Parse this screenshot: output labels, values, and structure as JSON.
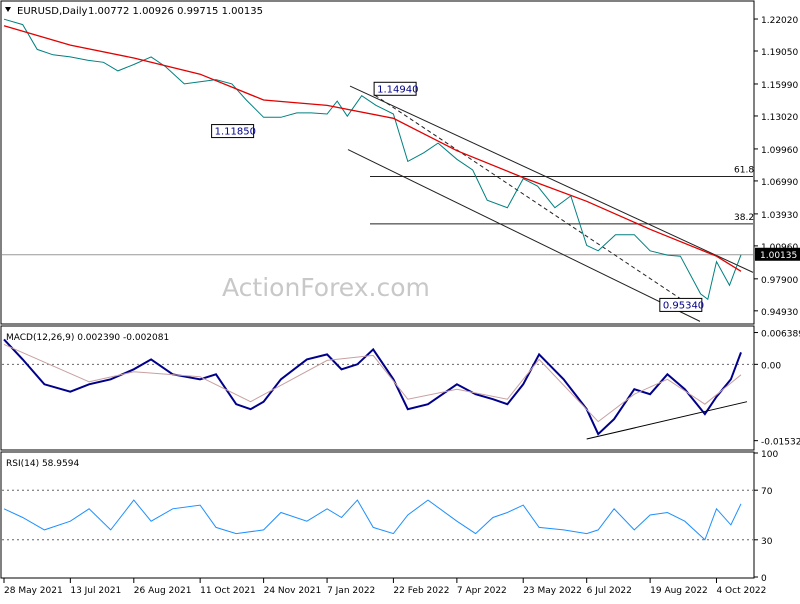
{
  "header": {
    "symbol": "EURUSD,Daily",
    "ohlc": "1.00772 1.00926 0.99715 1.00135"
  },
  "watermark": "ActionForex.com",
  "colors": {
    "price": "#008080",
    "ma": "#e00000",
    "macd": "#00008b",
    "signal": "#c8a0a0",
    "rsi": "#1e90ff",
    "fibo": "#222222",
    "channel": "#222222",
    "grid_dash": "#666666",
    "current_label_bg": "#000000"
  },
  "chart_data": [
    {
      "type": "line",
      "panel": "price",
      "y_range": [
        0.938,
        1.236
      ],
      "y_ticks": [
        "1.22020",
        "1.19050",
        "1.15990",
        "1.13020",
        "1.09960",
        "1.06990",
        "1.03930",
        "1.00960",
        "0.97900",
        "0.94930"
      ],
      "current_price": "1.00135",
      "x_ticks": [
        "28 May 2021",
        "13 Jul 2021",
        "26 Aug 2021",
        "11 Oct 2021",
        "24 Nov 2021",
        "7 Jan 2022",
        "22 Feb 2022",
        "7 Apr 2022",
        "23 May 2022",
        "6 Jul 2022",
        "19 Aug 2022",
        "4 Oct 2022"
      ],
      "series": [
        {
          "role": "price",
          "x": [
            "28 May 2021",
            "10 Jun 2021",
            "20 Jun 2021",
            "1 Jul 2021",
            "13 Jul 2021",
            "25 Jul 2021",
            "5 Aug 2021",
            "15 Aug 2021",
            "26 Aug 2021",
            "7 Sep 2021",
            "17 Sep 2021",
            "30 Sep 2021",
            "11 Oct 2021",
            "22 Oct 2021",
            "2 Nov 2021",
            "12 Nov 2021",
            "24 Nov 2021",
            "6 Dec 2021",
            "17 Dec 2021",
            "27 Dec 2021",
            "7 Jan 2022",
            "14 Jan 2022",
            "21 Jan 2022",
            "31 Jan 2022",
            "10 Feb 2022",
            "22 Feb 2022",
            "4 Mar 2022",
            "15 Mar 2022",
            "25 Mar 2022",
            "7 Apr 2022",
            "18 Apr 2022",
            "28 Apr 2022",
            "12 May 2022",
            "23 May 2022",
            "2 Jun 2022",
            "14 Jun 2022",
            "25 Jun 2022",
            "6 Jul 2022",
            "14 Jul 2022",
            "26 Jul 2022",
            "8 Aug 2022",
            "19 Aug 2022",
            "31 Aug 2022",
            "9 Sep 2022",
            "23 Sep 2022",
            "28 Sep 2022",
            "4 Oct 2022",
            "13 Oct 2022",
            "21 Oct 2022"
          ],
          "y": [
            1.22,
            1.215,
            1.192,
            1.187,
            1.185,
            1.182,
            1.18,
            1.172,
            1.178,
            1.185,
            1.176,
            1.16,
            1.162,
            1.164,
            1.16,
            1.145,
            1.129,
            1.129,
            1.133,
            1.133,
            1.132,
            1.144,
            1.13,
            1.149,
            1.14,
            1.132,
            1.088,
            1.096,
            1.105,
            1.09,
            1.08,
            1.052,
            1.045,
            1.072,
            1.065,
            1.045,
            1.056,
            1.01,
            1.005,
            1.02,
            1.02,
            1.005,
            1.001,
            1.0,
            0.965,
            0.96,
            0.995,
            0.973,
            1.0013
          ]
        },
        {
          "role": "moving-average",
          "x": [
            "28 May 2021",
            "13 Jul 2021",
            "26 Aug 2021",
            "11 Oct 2021",
            "24 Nov 2021",
            "7 Jan 2022",
            "22 Feb 2022",
            "7 Apr 2022",
            "23 May 2022",
            "6 Jul 2022",
            "19 Aug 2022",
            "4 Oct 2022",
            "21 Oct 2022"
          ],
          "y": [
            1.214,
            1.196,
            1.184,
            1.169,
            1.145,
            1.14,
            1.128,
            1.098,
            1.073,
            1.051,
            1.025,
            1.0,
            0.986
          ]
        }
      ],
      "annotations": [
        {
          "label": "1.14940",
          "x": "10 Feb 2022",
          "y": 1.1494
        },
        {
          "label": "1.11850",
          "x": "24 Nov 2021",
          "y": 1.1185
        },
        {
          "label": "0.95340",
          "x": "28 Sep 2022",
          "y": 0.9534
        },
        {
          "label": "61.8",
          "level": 1.074
        },
        {
          "label": "38.2",
          "level": 1.03
        }
      ]
    },
    {
      "type": "line",
      "panel": "macd",
      "title": "MACD(12,26,9) 0.002390 -0.002081",
      "y_range": [
        -0.017,
        0.0075
      ],
      "y_ticks": [
        "0.006389",
        "0.00",
        "-0.015324"
      ],
      "series": [
        {
          "role": "macd",
          "x": [
            "28 May 2021",
            "10 Jun 2021",
            "25 Jun 2021",
            "13 Jul 2021",
            "26 Jul 2021",
            "10 Aug 2021",
            "26 Aug 2021",
            "7 Sep 2021",
            "22 Sep 2021",
            "11 Oct 2021",
            "22 Oct 2021",
            "5 Nov 2021",
            "15 Nov 2021",
            "24 Nov 2021",
            "6 Dec 2021",
            "24 Dec 2021",
            "7 Jan 2022",
            "17 Jan 2022",
            "28 Jan 2022",
            "8 Feb 2022",
            "22 Feb 2022",
            "4 Mar 2022",
            "18 Mar 2022",
            "7 Apr 2022",
            "20 Apr 2022",
            "2 May 2022",
            "12 May 2022",
            "23 May 2022",
            "3 Jun 2022",
            "20 Jun 2022",
            "6 Jul 2022",
            "14 Jul 2022",
            "25 Jul 2022",
            "8 Aug 2022",
            "19 Aug 2022",
            "31 Aug 2022",
            "12 Sep 2022",
            "26 Sep 2022",
            "4 Oct 2022",
            "14 Oct 2022",
            "21 Oct 2022"
          ],
          "y": [
            0.005,
            0.001,
            -0.004,
            -0.0055,
            -0.004,
            -0.003,
            -0.001,
            0.001,
            -0.002,
            -0.003,
            -0.002,
            -0.008,
            -0.009,
            -0.0075,
            -0.003,
            0.001,
            0.002,
            -0.001,
            0.0,
            0.003,
            -0.003,
            -0.009,
            -0.008,
            -0.004,
            -0.006,
            -0.007,
            -0.008,
            -0.004,
            0.002,
            -0.003,
            -0.009,
            -0.014,
            -0.011,
            -0.005,
            -0.006,
            -0.002,
            -0.005,
            -0.01,
            -0.0065,
            -0.003,
            0.0024
          ]
        },
        {
          "role": "signal",
          "x": [
            "28 May 2021",
            "26 Jul 2021",
            "26 Aug 2021",
            "11 Oct 2021",
            "15 Nov 2021",
            "7 Jan 2022",
            "8 Feb 2022",
            "4 Mar 2022",
            "7 Apr 2022",
            "12 May 2022",
            "3 Jun 2022",
            "14 Jul 2022",
            "8 Aug 2022",
            "31 Aug 2022",
            "26 Sep 2022",
            "21 Oct 2022"
          ],
          "y": [
            0.004,
            -0.0035,
            -0.0015,
            -0.0025,
            -0.0075,
            0.0008,
            0.0018,
            -0.007,
            -0.005,
            -0.007,
            0.001,
            -0.0115,
            -0.006,
            -0.003,
            -0.008,
            -0.0021
          ]
        }
      ],
      "annotations": [
        {
          "label": "support-trendline",
          "from": [
            "6 Jul 2022",
            -0.015
          ],
          "to": [
            "21 Oct 2022",
            -0.0075
          ]
        }
      ]
    },
    {
      "type": "line",
      "panel": "rsi",
      "title": "RSI(14) 58.9594",
      "y_range": [
        0,
        100
      ],
      "y_ticks": [
        "100",
        "70",
        "30",
        "0"
      ],
      "series": [
        {
          "role": "rsi",
          "x": [
            "28 May 2021",
            "10 Jun 2021",
            "25 Jun 2021",
            "13 Jul 2021",
            "26 Jul 2021",
            "10 Aug 2021",
            "26 Aug 2021",
            "7 Sep 2021",
            "22 Sep 2021",
            "11 Oct 2021",
            "22 Oct 2021",
            "5 Nov 2021",
            "24 Nov 2021",
            "6 Dec 2021",
            "24 Dec 2021",
            "7 Jan 2022",
            "17 Jan 2022",
            "28 Jan 2022",
            "8 Feb 2022",
            "22 Feb 2022",
            "4 Mar 2022",
            "18 Mar 2022",
            "7 Apr 2022",
            "20 Apr 2022",
            "2 May 2022",
            "12 May 2022",
            "23 May 2022",
            "3 Jun 2022",
            "20 Jun 2022",
            "6 Jul 2022",
            "14 Jul 2022",
            "25 Jul 2022",
            "8 Aug 2022",
            "19 Aug 2022",
            "31 Aug 2022",
            "12 Sep 2022",
            "26 Sep 2022",
            "4 Oct 2022",
            "14 Oct 2022",
            "21 Oct 2022"
          ],
          "y": [
            55,
            48,
            38,
            45,
            55,
            38,
            62,
            45,
            55,
            58,
            40,
            35,
            38,
            52,
            45,
            55,
            48,
            62,
            40,
            35,
            50,
            62,
            45,
            35,
            48,
            52,
            58,
            40,
            38,
            35,
            38,
            55,
            38,
            50,
            52,
            45,
            30,
            55,
            42,
            59
          ]
        }
      ]
    }
  ]
}
